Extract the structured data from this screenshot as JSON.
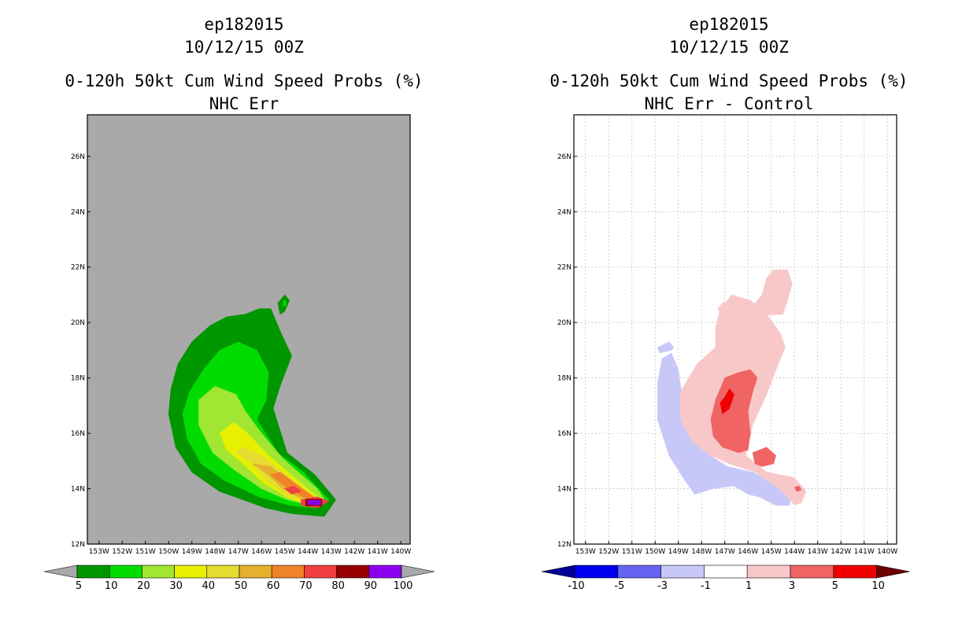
{
  "colors": {
    "background": "#ffffff",
    "left_plot_background": "#a9a9a9",
    "grid": "#b0b0b0",
    "frame": "#000000"
  },
  "chart_data": [
    {
      "type": "heatmap",
      "storm_id": "ep182015",
      "date": "10/12/15 00Z",
      "title": "0-120h 50kt Cum Wind Speed Probs (%)",
      "subtitle": "NHC Err",
      "x_ticks": [
        "153W",
        "152W",
        "151W",
        "150W",
        "149W",
        "148W",
        "147W",
        "146W",
        "145W",
        "144W",
        "143W",
        "142W",
        "141W",
        "140W"
      ],
      "y_ticks": [
        "12N",
        "14N",
        "16N",
        "18N",
        "20N",
        "22N",
        "24N",
        "26N"
      ],
      "xlim": [
        -153.5,
        -139.6
      ],
      "ylim": [
        12,
        27.5
      ],
      "colorbar": {
        "labels": [
          "5",
          "10",
          "20",
          "30",
          "40",
          "50",
          "60",
          "70",
          "80",
          "90",
          "100"
        ],
        "colors": [
          "#009600",
          "#00dc00",
          "#a0e632",
          "#e6f000",
          "#e6dc32",
          "#e6af2d",
          "#f08228",
          "#f04040",
          "#960000",
          "#8c00f0"
        ],
        "left_arrow_color": "#a9a9a9",
        "right_arrow_color": "#a9a9a9"
      },
      "contours": [
        {
          "level": 5,
          "color": "#009600",
          "points": [
            [
              -147.8,
              13.9
            ],
            [
              -149.0,
              14.6
            ],
            [
              -149.7,
              15.5
            ],
            [
              -150.0,
              16.7
            ],
            [
              -149.9,
              17.6
            ],
            [
              -149.6,
              18.5
            ],
            [
              -149.0,
              19.3
            ],
            [
              -148.2,
              19.9
            ],
            [
              -147.5,
              20.2
            ],
            [
              -146.7,
              20.3
            ],
            [
              -146.1,
              20.5
            ],
            [
              -145.6,
              20.5
            ],
            [
              -145.1,
              19.5
            ],
            [
              -144.7,
              18.8
            ],
            [
              -145.2,
              17.7
            ],
            [
              -145.5,
              16.9
            ],
            [
              -144.9,
              15.3
            ],
            [
              -143.7,
              14.5
            ],
            [
              -142.8,
              13.6
            ],
            [
              -143.3,
              13.0
            ],
            [
              -144.7,
              13.1
            ],
            [
              -145.8,
              13.3
            ]
          ]
        },
        {
          "level": 10,
          "color": "#00dc00",
          "points": [
            [
              -147.6,
              14.3
            ],
            [
              -148.6,
              14.9
            ],
            [
              -149.2,
              15.8
            ],
            [
              -149.4,
              16.7
            ],
            [
              -149.1,
              17.5
            ],
            [
              -148.5,
              18.3
            ],
            [
              -147.8,
              19.0
            ],
            [
              -147.0,
              19.3
            ],
            [
              -146.2,
              19.0
            ],
            [
              -145.7,
              18.2
            ],
            [
              -145.8,
              17.2
            ],
            [
              -146.2,
              16.5
            ],
            [
              -145.3,
              15.3
            ],
            [
              -144.2,
              14.6
            ],
            [
              -143.1,
              13.6
            ],
            [
              -143.7,
              13.3
            ],
            [
              -144.8,
              13.4
            ],
            [
              -146.1,
              13.7
            ]
          ]
        },
        {
          "level": 20,
          "color": "#a0e632",
          "points": [
            [
              -147.2,
              14.7
            ],
            [
              -148.1,
              15.3
            ],
            [
              -148.7,
              16.3
            ],
            [
              -148.7,
              17.2
            ],
            [
              -148.0,
              17.7
            ],
            [
              -147.1,
              17.4
            ],
            [
              -146.7,
              16.8
            ],
            [
              -146.0,
              16.0
            ],
            [
              -145.1,
              15.1
            ],
            [
              -143.6,
              14.0
            ],
            [
              -143.2,
              13.5
            ],
            [
              -143.9,
              13.4
            ],
            [
              -144.9,
              13.6
            ],
            [
              -146.0,
              14.0
            ]
          ]
        },
        {
          "level": 30,
          "color": "#e6f000",
          "points": [
            [
              -146.8,
              14.9
            ],
            [
              -147.5,
              15.4
            ],
            [
              -147.8,
              16.0
            ],
            [
              -147.2,
              16.4
            ],
            [
              -146.6,
              16.0
            ],
            [
              -145.7,
              15.2
            ],
            [
              -144.3,
              14.2
            ],
            [
              -143.3,
              13.5
            ],
            [
              -143.9,
              13.4
            ],
            [
              -144.9,
              13.7
            ],
            [
              -145.9,
              14.2
            ]
          ]
        },
        {
          "level": 40,
          "color": "#e6dc32",
          "points": [
            [
              -146.4,
              14.9
            ],
            [
              -147.1,
              15.3
            ],
            [
              -146.8,
              15.5
            ],
            [
              -146.0,
              15.2
            ],
            [
              -144.6,
              14.3
            ],
            [
              -143.4,
              13.5
            ],
            [
              -144.0,
              13.5
            ],
            [
              -145.0,
              13.8
            ],
            [
              -145.8,
              14.3
            ]
          ]
        },
        {
          "level": 50,
          "color": "#e6af2d",
          "points": [
            [
              -145.7,
              14.5
            ],
            [
              -146.4,
              14.9
            ],
            [
              -145.6,
              14.8
            ],
            [
              -144.5,
              14.1
            ],
            [
              -143.5,
              13.6
            ],
            [
              -144.2,
              13.6
            ],
            [
              -145.1,
              14.0
            ]
          ]
        },
        {
          "level": 60,
          "color": "#f08228",
          "points": [
            [
              -145.0,
              14.1
            ],
            [
              -145.6,
              14.5
            ],
            [
              -145.2,
              14.6
            ],
            [
              -144.4,
              14.1
            ],
            [
              -143.6,
              13.6
            ],
            [
              -144.2,
              13.7
            ]
          ]
        },
        {
          "level": 70,
          "color": "#f04040",
          "points": [
            [
              -145.0,
              14.0
            ],
            [
              -144.6,
              14.1
            ],
            [
              -144.3,
              13.9
            ],
            [
              -144.7,
              13.8
            ]
          ]
        },
        {
          "level": 70,
          "color": "#f04040",
          "points": [
            [
              -144.3,
              13.6
            ],
            [
              -143.6,
              13.7
            ],
            [
              -143.1,
              13.55
            ],
            [
              -143.6,
              13.3
            ],
            [
              -144.3,
              13.4
            ]
          ]
        },
        {
          "level": 80,
          "color": "#960000",
          "points": [
            [
              -144.1,
              13.62
            ],
            [
              -143.4,
              13.62
            ],
            [
              -143.4,
              13.38
            ],
            [
              -144.1,
              13.38
            ]
          ]
        },
        {
          "level": 90,
          "color": "#8c00f0",
          "points": [
            [
              -144.0,
              13.58
            ],
            [
              -143.45,
              13.58
            ],
            [
              -143.45,
              13.42
            ],
            [
              -144.0,
              13.42
            ]
          ]
        },
        {
          "level": 5,
          "color": "#009600",
          "points": [
            [
              -145.3,
              20.7
            ],
            [
              -145.0,
              21.0
            ],
            [
              -144.8,
              20.8
            ],
            [
              -145.0,
              20.4
            ],
            [
              -145.2,
              20.3
            ]
          ]
        },
        {
          "level": 10,
          "color": "#00dc00",
          "points": [
            [
              -145.05,
              20.8
            ],
            [
              -144.95,
              20.8
            ],
            [
              -144.95,
              20.6
            ],
            [
              -145.05,
              20.6
            ]
          ]
        }
      ]
    },
    {
      "type": "heatmap",
      "storm_id": "ep182015",
      "date": "10/12/15 00Z",
      "title": "0-120h 50kt Cum Wind Speed Probs (%)",
      "subtitle": "NHC Err - Control",
      "x_ticks": [
        "153W",
        "152W",
        "151W",
        "150W",
        "149W",
        "148W",
        "147W",
        "146W",
        "145W",
        "144W",
        "143W",
        "142W",
        "141W",
        "140W"
      ],
      "y_ticks": [
        "12N",
        "14N",
        "16N",
        "18N",
        "20N",
        "22N",
        "24N",
        "26N"
      ],
      "xlim": [
        -153.5,
        -139.6
      ],
      "ylim": [
        12,
        27.5
      ],
      "colorbar": {
        "labels": [
          "-10",
          "-5",
          "-3",
          "-1",
          "1",
          "3",
          "5",
          "10"
        ],
        "colors": [
          "#0000f0",
          "#6464f0",
          "#c8c8f8",
          "#ffffff",
          "#f8c8c8",
          "#f06464",
          "#f00000"
        ],
        "left_arrow_color": "#000096",
        "right_arrow_color": "#6e0000"
      },
      "contours": [
        {
          "level": -3,
          "color": "#c8c8f8",
          "points": [
            [
              -149.7,
              18.7
            ],
            [
              -149.3,
              18.9
            ],
            [
              -149.0,
              18.3
            ],
            [
              -148.8,
              17.1
            ],
            [
              -148.6,
              16.2
            ],
            [
              -147.8,
              15.3
            ],
            [
              -146.9,
              14.8
            ],
            [
              -145.8,
              14.6
            ],
            [
              -144.9,
              14.2
            ],
            [
              -144.4,
              13.9
            ],
            [
              -144.2,
              13.6
            ],
            [
              -144.2,
              13.4
            ],
            [
              -144.8,
              13.4
            ],
            [
              -145.5,
              13.7
            ],
            [
              -146.0,
              13.8
            ],
            [
              -146.6,
              14.1
            ],
            [
              -147.5,
              14.0
            ],
            [
              -148.3,
              13.8
            ],
            [
              -148.8,
              14.4
            ],
            [
              -149.4,
              15.2
            ],
            [
              -149.9,
              16.5
            ],
            [
              -149.9,
              17.8
            ]
          ]
        },
        {
          "level": -3,
          "color": "#c8c8f8",
          "points": [
            [
              -149.9,
              19.1
            ],
            [
              -149.4,
              19.3
            ],
            [
              -149.2,
              19.1
            ],
            [
              -149.3,
              19.0
            ],
            [
              -149.8,
              18.9
            ]
          ]
        },
        {
          "level": 1,
          "color": "#f8c8c8",
          "points": [
            [
              -147.4,
              19.1
            ],
            [
              -148.2,
              18.5
            ],
            [
              -148.9,
              17.5
            ],
            [
              -148.9,
              16.5
            ],
            [
              -148.4,
              15.7
            ],
            [
              -147.6,
              15.2
            ],
            [
              -146.8,
              14.9
            ],
            [
              -145.7,
              14.6
            ],
            [
              -144.8,
              14.1
            ],
            [
              -144.4,
              13.8
            ],
            [
              -144.0,
              13.4
            ],
            [
              -143.7,
              13.5
            ],
            [
              -143.5,
              13.9
            ],
            [
              -144.0,
              14.4
            ],
            [
              -145.2,
              14.6
            ],
            [
              -146.1,
              15.2
            ],
            [
              -145.8,
              16.3
            ],
            [
              -145.2,
              17.4
            ],
            [
              -144.7,
              18.5
            ],
            [
              -144.4,
              19.1
            ],
            [
              -144.6,
              19.6
            ],
            [
              -145.2,
              20.3
            ],
            [
              -145.9,
              20.8
            ],
            [
              -146.7,
              21.0
            ],
            [
              -147.2,
              20.5
            ],
            [
              -147.4,
              19.8
            ]
          ]
        },
        {
          "level": 1,
          "color": "#f8c8c8",
          "points": [
            [
              -146.6,
              20.2
            ],
            [
              -145.9,
              20.5
            ],
            [
              -145.4,
              21.0
            ],
            [
              -145.2,
              21.6
            ],
            [
              -144.9,
              21.9
            ],
            [
              -144.3,
              21.9
            ],
            [
              -144.1,
              21.4
            ],
            [
              -144.3,
              20.8
            ],
            [
              -144.5,
              20.3
            ]
          ]
        },
        {
          "level": 1,
          "color": "#f8c8c8",
          "points": [
            [
              -147.3,
              20.5
            ],
            [
              -147.05,
              20.75
            ],
            [
              -146.9,
              20.5
            ],
            [
              -147.1,
              20.2
            ]
          ]
        },
        {
          "level": 3,
          "color": "#f06464",
          "points": [
            [
              -147.4,
              17.2
            ],
            [
              -147.6,
              16.5
            ],
            [
              -147.5,
              15.9
            ],
            [
              -147.1,
              15.5
            ],
            [
              -146.4,
              15.3
            ],
            [
              -146.0,
              15.4
            ],
            [
              -145.9,
              16.0
            ],
            [
              -146.0,
              16.8
            ],
            [
              -145.8,
              17.5
            ],
            [
              -145.6,
              18.0
            ],
            [
              -145.9,
              18.3
            ],
            [
              -146.4,
              18.2
            ],
            [
              -147.0,
              18.0
            ]
          ]
        },
        {
          "level": 3,
          "color": "#f06464",
          "points": [
            [
              -145.8,
              15.3
            ],
            [
              -145.2,
              15.5
            ],
            [
              -144.8,
              15.2
            ],
            [
              -144.9,
              14.9
            ],
            [
              -145.4,
              14.8
            ],
            [
              -145.7,
              14.9
            ]
          ]
        },
        {
          "level": 5,
          "color": "#f00000",
          "points": [
            [
              -147.0,
              17.3
            ],
            [
              -147.2,
              17.1
            ],
            [
              -147.1,
              16.7
            ],
            [
              -146.8,
              16.9
            ],
            [
              -146.6,
              17.4
            ],
            [
              -146.8,
              17.6
            ]
          ]
        },
        {
          "level": 3,
          "color": "#f06464",
          "points": [
            [
              -144.0,
              14.05
            ],
            [
              -143.8,
              14.1
            ],
            [
              -143.7,
              13.95
            ],
            [
              -143.9,
              13.9
            ]
          ]
        }
      ]
    }
  ]
}
